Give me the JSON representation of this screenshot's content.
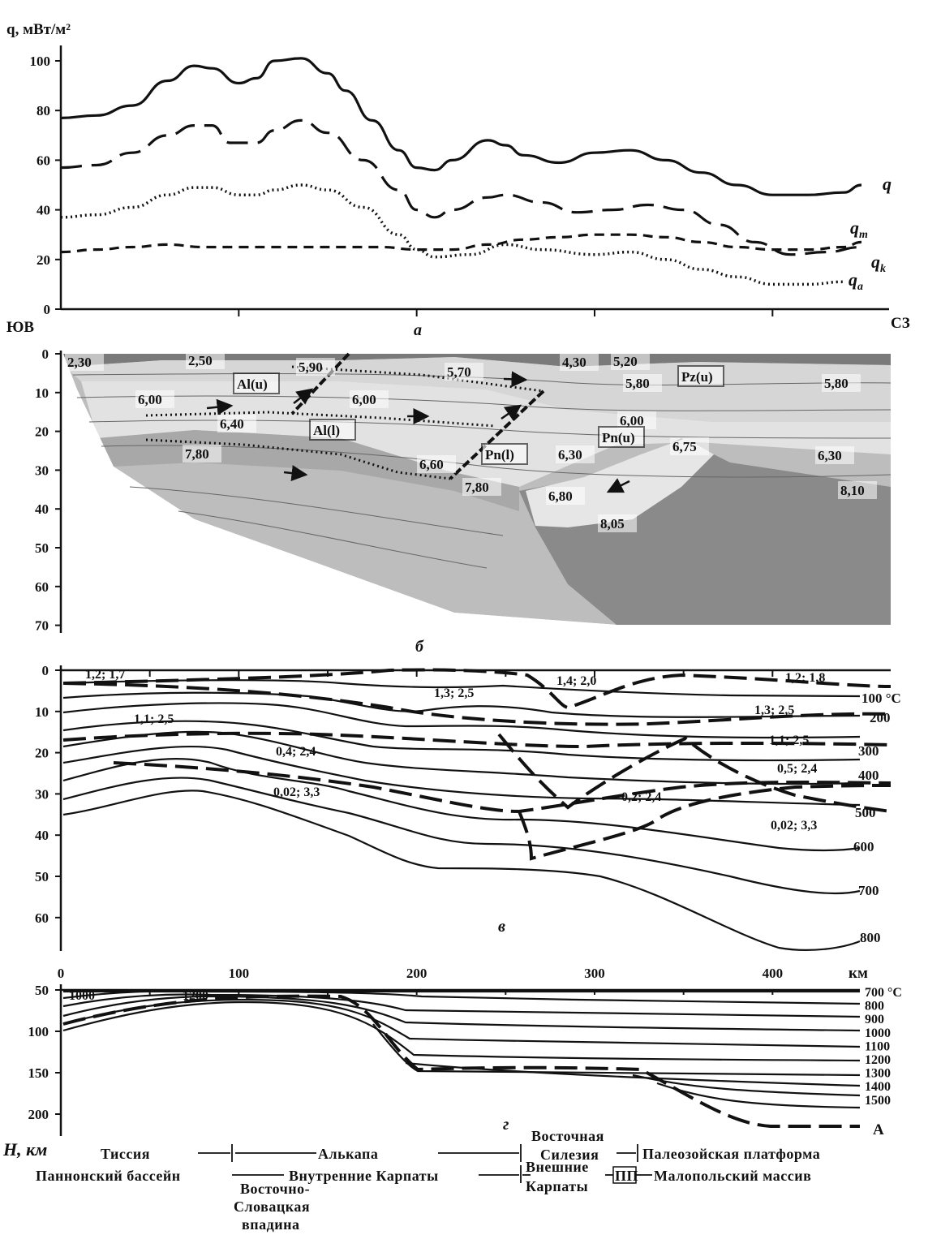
{
  "panel_a": {
    "letter": "а",
    "ylabel": "q, мВт/м²",
    "direction_left": "ЮВ",
    "direction_right": "СЗ",
    "chart_data": {
      "type": "line",
      "xlim": [
        0,
        450
      ],
      "ylim": [
        0,
        100
      ],
      "yticks": [
        "0",
        "20",
        "40",
        "60",
        "80",
        "100"
      ],
      "series": [
        {
          "name": "q",
          "style": "solid",
          "x": [
            0,
            20,
            40,
            60,
            75,
            85,
            100,
            110,
            120,
            135,
            150,
            160,
            175,
            190,
            200,
            210,
            220,
            240,
            250,
            260,
            280,
            300,
            320,
            340,
            360,
            380,
            400,
            420,
            440,
            450
          ],
          "y": [
            77,
            78,
            82,
            92,
            98,
            97,
            91,
            93,
            100,
            101,
            95,
            88,
            76,
            64,
            57,
            56,
            60,
            68,
            66,
            62,
            59,
            63,
            64,
            60,
            55,
            50,
            46,
            46,
            47,
            50
          ]
        },
        {
          "name": "qm",
          "style": "dashed",
          "x": [
            0,
            20,
            40,
            60,
            75,
            85,
            95,
            110,
            120,
            135,
            150,
            170,
            190,
            200,
            210,
            220,
            240,
            250,
            270,
            290,
            310,
            330,
            350,
            370,
            390,
            410,
            430,
            450
          ],
          "y": [
            57,
            58,
            63,
            70,
            74,
            74,
            67,
            67,
            72,
            76,
            71,
            60,
            48,
            40,
            37,
            40,
            45,
            46,
            43,
            39,
            40,
            42,
            40,
            34,
            27,
            22,
            23,
            25
          ]
        },
        {
          "name": "qa",
          "style": "dotted",
          "x": [
            0,
            20,
            40,
            60,
            75,
            85,
            100,
            110,
            120,
            135,
            150,
            170,
            190,
            200,
            210,
            230,
            250,
            270,
            300,
            320,
            340,
            360,
            380,
            400,
            420,
            440
          ],
          "y": [
            37,
            38,
            41,
            46,
            49,
            49,
            46,
            46,
            48,
            50,
            48,
            41,
            30,
            24,
            21,
            22,
            26,
            24,
            22,
            23,
            20,
            16,
            13,
            10,
            10,
            11
          ]
        },
        {
          "name": "qk",
          "style": "short-dashed",
          "x": [
            0,
            20,
            40,
            60,
            80,
            100,
            120,
            140,
            160,
            180,
            200,
            220,
            240,
            260,
            280,
            300,
            320,
            340,
            360,
            380,
            400,
            420,
            440,
            450
          ],
          "y": [
            23,
            24,
            25,
            26,
            25,
            25,
            25,
            25,
            25,
            25,
            24,
            24,
            26,
            28,
            29,
            30,
            30,
            29,
            27,
            25,
            24,
            24,
            25,
            27
          ]
        }
      ]
    }
  },
  "panel_b": {
    "letter": "б",
    "yticks": [
      "0",
      "10",
      "20",
      "30",
      "40",
      "50",
      "60",
      "70"
    ],
    "velocity_labels": [
      "2,30",
      "2,50",
      "5,90",
      "5,70",
      "4,30",
      "5,20",
      "5,80",
      "5,80",
      "6,00",
      "6,00",
      "6,00",
      "6,40",
      "7,80",
      "6,60",
      "7,80",
      "6,30",
      "6,75",
      "6,30",
      "6,80",
      "8,10",
      "8,05"
    ],
    "unit_labels": [
      "Al(u)",
      "Al(l)",
      "Pn(l)",
      "Pn(u)",
      "Pz(u)"
    ]
  },
  "panel_v": {
    "letter": "в",
    "yticks": [
      "0",
      "10",
      "20",
      "30",
      "40",
      "50",
      "60"
    ],
    "isotherm_labels": [
      "100 °C",
      "200",
      "300",
      "400",
      "500",
      "600",
      "700",
      "800"
    ],
    "layer_labels": [
      "1,2; 1,7",
      "1,4; 2,0",
      "1,2; 1,8",
      "1,3; 2,5",
      "1,3; 2,5",
      "1,1; 2,5",
      "1,1; 2,5",
      "0,4; 2,4",
      "0,5; 2,4",
      "0,02; 3,3",
      "0,2; 2,4",
      "0,02; 3,3"
    ],
    "xticks": [
      "0",
      "100",
      "200",
      "300",
      "400"
    ],
    "xunit": "км"
  },
  "panel_g": {
    "letter": "г",
    "yticks": [
      "50",
      "100",
      "150",
      "200"
    ],
    "ylabel": "H, км",
    "isotherm_labels": [
      "700 °C",
      "800",
      "900",
      "1000",
      "1100",
      "1200",
      "1300",
      "1400",
      "1500"
    ],
    "small_labels": [
      "1000",
      "1200"
    ],
    "a_label": "А"
  },
  "regions": {
    "tissia": "Тиссия",
    "alkapa": "Алькапа",
    "silesia_top": "Восточная",
    "silesia_bottom": "Силезия",
    "paleozoic": "Палеозойская платформа",
    "pannonian": "Паннонский бассейн",
    "inner_carpathians": "Внутренние Карпаты",
    "outer_top": "Внешние",
    "outer_bottom": "Карпаты",
    "pp": "ПП",
    "malopolska": "Малопольский массив",
    "eslovak_1": "Восточно-",
    "eslovak_2": "Словацкая",
    "eslovak_3": "впадина"
  }
}
